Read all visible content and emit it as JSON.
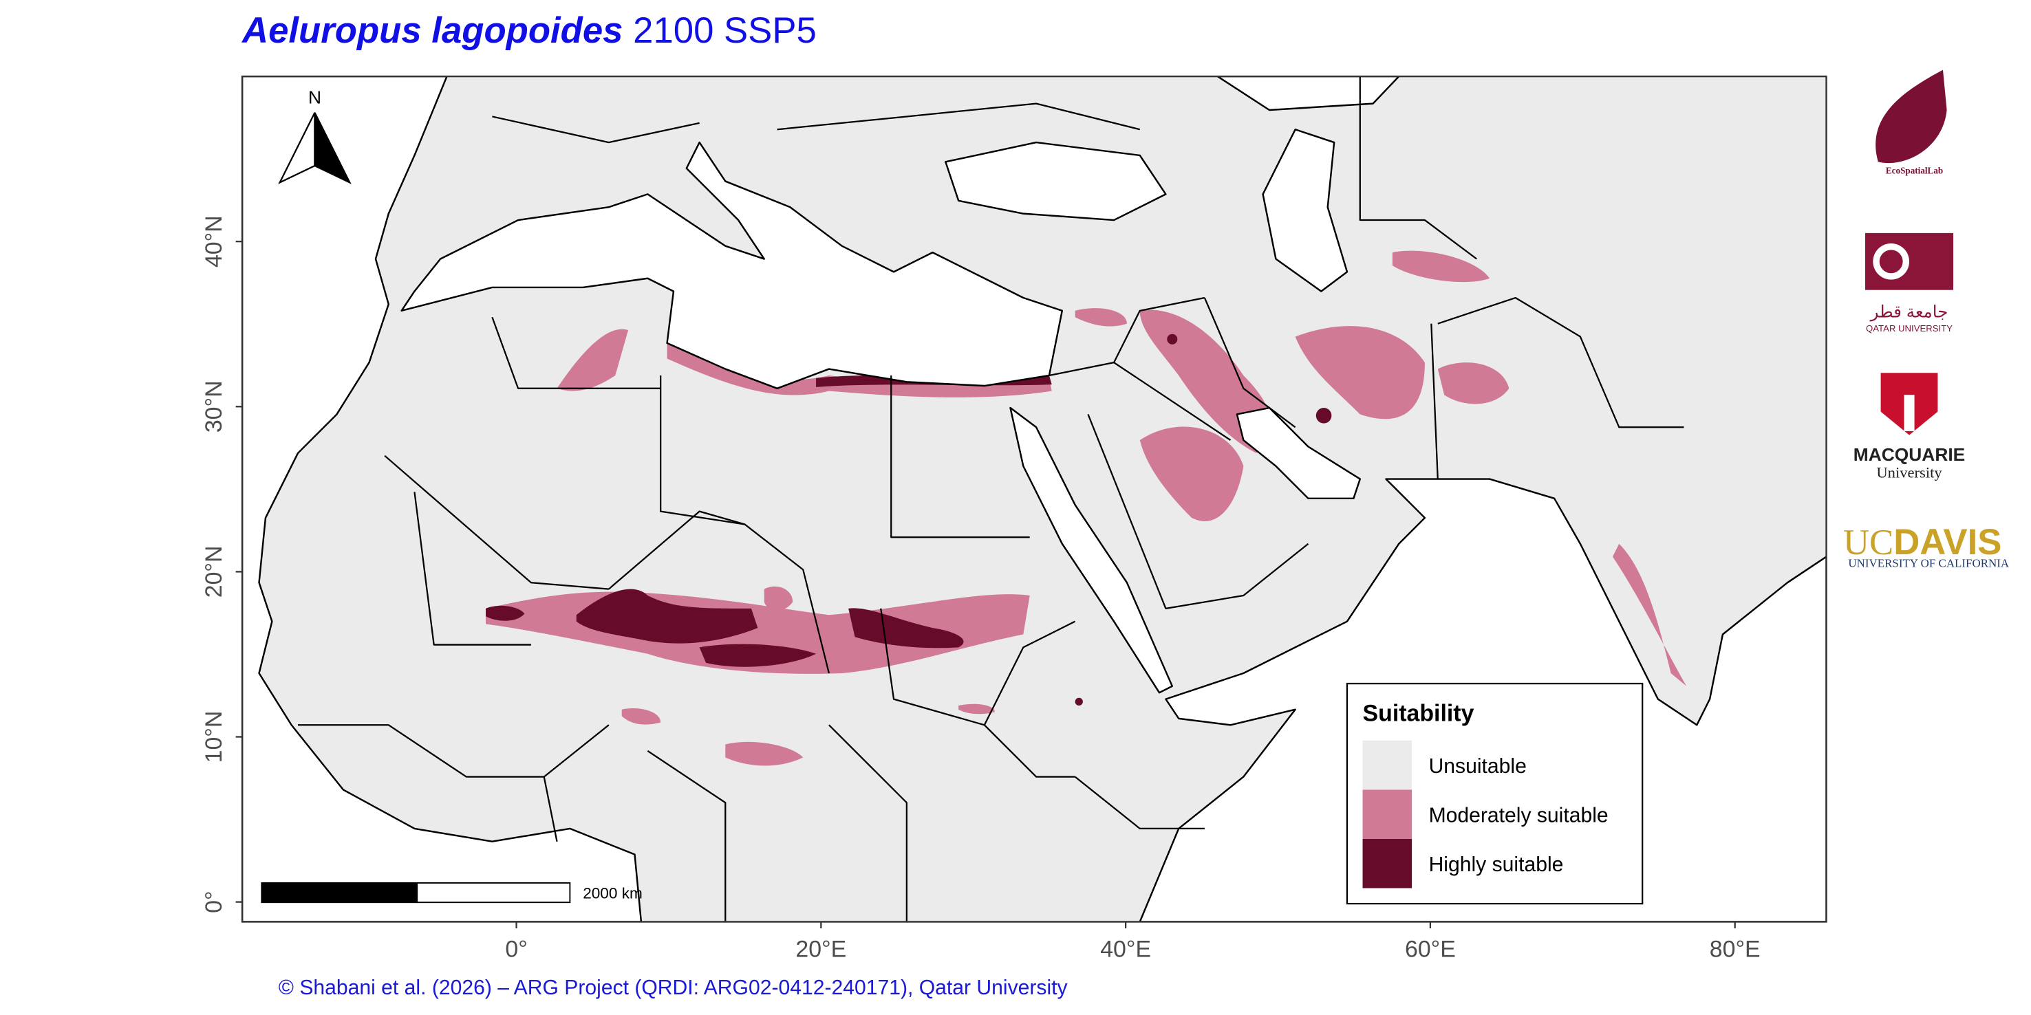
{
  "title": {
    "species": "Aeluropus lagopoides",
    "scenario": "2100 SSP5"
  },
  "map": {
    "xlim": [
      -18,
      86
    ],
    "ylim": [
      -1.2,
      50
    ],
    "xticks": [
      {
        "value": 0,
        "label": "0°"
      },
      {
        "value": 20,
        "label": "20°E"
      },
      {
        "value": 40,
        "label": "40°E"
      },
      {
        "value": 60,
        "label": "60°E"
      },
      {
        "value": 80,
        "label": "80°E"
      }
    ],
    "yticks": [
      {
        "value": 0,
        "label": "0°"
      },
      {
        "value": 10,
        "label": "10°N"
      },
      {
        "value": 20,
        "label": "20°N"
      },
      {
        "value": 30,
        "label": "30°N"
      },
      {
        "value": 40,
        "label": "40°N"
      }
    ],
    "north_label": "N",
    "scale_label": "2000 km"
  },
  "legend": {
    "title": "Suitability",
    "items": [
      {
        "label": "Unsuitable",
        "color": "#ebebeb"
      },
      {
        "label": "Moderately suitable",
        "color": "#d07a95"
      },
      {
        "label": "Highly suitable",
        "color": "#670b2a"
      }
    ]
  },
  "logos": {
    "ecospatial": "EcoSpatialLab",
    "qu_arabic": "جامعة قطر",
    "qu_english": "QATAR UNIVERSITY",
    "macquarie": "MACQUARIE",
    "macquarie_sub": "University",
    "ucdavis_uc": "UC",
    "ucdavis_davis": "DAVIS",
    "ucdavis_sub": "UNIVERSITY OF CALIFORNIA"
  },
  "credit": "© Shabani et al. (2026) – ARG Project (QRDI: ARG02-0412-240171), Qatar University"
}
